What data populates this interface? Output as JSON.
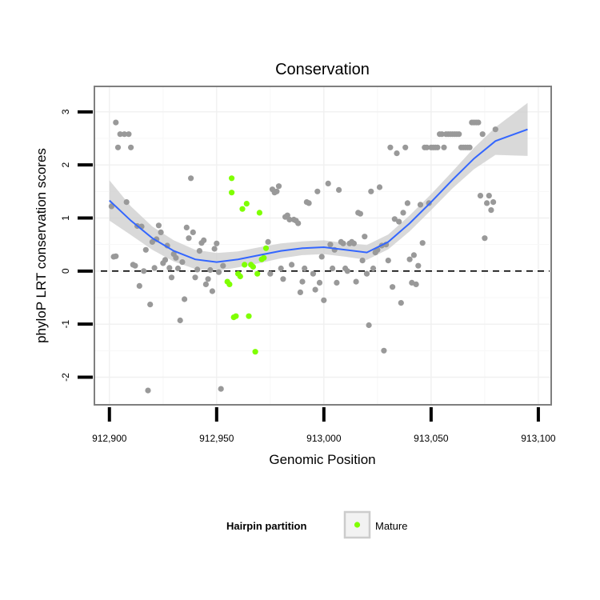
{
  "chart_data": {
    "type": "scatter",
    "title": "Conservation",
    "xlabel": "Genomic Position",
    "ylabel": "phyloP LRT conservation scores",
    "xlim": [
      912893,
      913106
    ],
    "ylim": [
      -2.52,
      3.48
    ],
    "x_ticks": [
      912900,
      912950,
      913000,
      913050,
      913100
    ],
    "x_tick_labels": [
      "912,900",
      "912,950",
      "913,000",
      "913,050",
      "913,100"
    ],
    "y_ticks": [
      -2,
      -1,
      0,
      1,
      2,
      3
    ],
    "y_tick_labels": [
      "-2",
      "-1",
      "0",
      "1",
      "2",
      "3"
    ],
    "grid": true,
    "reference_line": {
      "y": 0,
      "style": "dashed"
    },
    "legend": {
      "title": "Hairpin partition",
      "position": "bottom",
      "entries": [
        "Mature"
      ]
    },
    "colors": {
      "other": "#999999",
      "mature": "#7FFF00",
      "smooth": "#3366FF",
      "ribbon": "#cccccc",
      "panel_border": "#7f7f7f"
    },
    "series": [
      {
        "name": "",
        "color": "#999999",
        "points": [
          [
            912901,
            1.22
          ],
          [
            912902,
            0.27
          ],
          [
            912903,
            2.8
          ],
          [
            912903,
            0.28
          ],
          [
            912904,
            2.33
          ],
          [
            912905,
            2.58
          ],
          [
            912907,
            2.58
          ],
          [
            912908,
            1.3
          ],
          [
            912909,
            2.58
          ],
          [
            912910,
            2.33
          ],
          [
            912911,
            0.12
          ],
          [
            912912,
            0.1
          ],
          [
            912913,
            0.85
          ],
          [
            912914,
            -0.28
          ],
          [
            912915,
            0.84
          ],
          [
            912916,
            0.0
          ],
          [
            912917,
            0.4
          ],
          [
            912918,
            -2.25
          ],
          [
            912919,
            -0.63
          ],
          [
            912920,
            0.55
          ],
          [
            912921,
            0.06
          ],
          [
            912922,
            0.6
          ],
          [
            912923,
            0.86
          ],
          [
            912924,
            0.73
          ],
          [
            912925,
            0.15
          ],
          [
            912926,
            0.21
          ],
          [
            912927,
            0.48
          ],
          [
            912928,
            0.06
          ],
          [
            912929,
            -0.12
          ],
          [
            912930,
            0.32
          ],
          [
            912931,
            0.25
          ],
          [
            912932,
            0.05
          ],
          [
            912933,
            -0.93
          ],
          [
            912934,
            0.17
          ],
          [
            912935,
            -0.53
          ],
          [
            912936,
            0.82
          ],
          [
            912937,
            0.62
          ],
          [
            912938,
            1.75
          ],
          [
            912939,
            0.73
          ],
          [
            912940,
            -0.12
          ],
          [
            912941,
            0.03
          ],
          [
            912942,
            0.38
          ],
          [
            912943,
            0.53
          ],
          [
            912944,
            0.58
          ],
          [
            912945,
            -0.25
          ],
          [
            912946,
            -0.15
          ],
          [
            912947,
            0.02
          ],
          [
            912948,
            -0.38
          ],
          [
            912949,
            0.42
          ],
          [
            912950,
            0.52
          ],
          [
            912951,
            -0.02
          ],
          [
            912952,
            -2.22
          ],
          [
            912953,
            0.1
          ],
          [
            912974,
            0.55
          ],
          [
            912975,
            -0.05
          ],
          [
            912976,
            1.54
          ],
          [
            912977,
            1.48
          ],
          [
            912978,
            1.5
          ],
          [
            912979,
            1.6
          ],
          [
            912980,
            0.05
          ],
          [
            912981,
            -0.15
          ],
          [
            912982,
            1.02
          ],
          [
            912983,
            1.05
          ],
          [
            912984,
            0.97
          ],
          [
            912985,
            0.12
          ],
          [
            912986,
            0.97
          ],
          [
            912987,
            0.95
          ],
          [
            912988,
            0.9
          ],
          [
            912989,
            -0.4
          ],
          [
            912990,
            -0.2
          ],
          [
            912991,
            0.05
          ],
          [
            912992,
            1.3
          ],
          [
            912993,
            1.28
          ],
          [
            912995,
            -0.05
          ],
          [
            912996,
            -0.35
          ],
          [
            912997,
            1.5
          ],
          [
            912998,
            -0.22
          ],
          [
            912999,
            0.27
          ],
          [
            913000,
            -0.55
          ],
          [
            913002,
            1.65
          ],
          [
            913003,
            0.5
          ],
          [
            913004,
            0.05
          ],
          [
            913005,
            0.4
          ],
          [
            913006,
            -0.22
          ],
          [
            913007,
            1.53
          ],
          [
            913008,
            0.55
          ],
          [
            913009,
            0.52
          ],
          [
            913010,
            0.05
          ],
          [
            913011,
            0.0
          ],
          [
            913012,
            0.52
          ],
          [
            913013,
            0.55
          ],
          [
            913014,
            0.52
          ],
          [
            913015,
            -0.2
          ],
          [
            913016,
            1.1
          ],
          [
            913017,
            1.08
          ],
          [
            913018,
            0.2
          ],
          [
            913019,
            0.65
          ],
          [
            913020,
            -0.05
          ],
          [
            913021,
            -1.02
          ],
          [
            913022,
            1.5
          ],
          [
            913023,
            0.05
          ],
          [
            913024,
            0.35
          ],
          [
            913025,
            0.4
          ],
          [
            913026,
            1.58
          ],
          [
            913027,
            0.48
          ],
          [
            913028,
            -1.5
          ],
          [
            913029,
            0.5
          ],
          [
            913030,
            0.2
          ],
          [
            913031,
            2.33
          ],
          [
            913032,
            -0.3
          ],
          [
            913033,
            0.98
          ],
          [
            913034,
            2.22
          ],
          [
            913035,
            0.93
          ],
          [
            913036,
            -0.6
          ],
          [
            913037,
            1.1
          ],
          [
            913038,
            2.33
          ],
          [
            913039,
            1.28
          ],
          [
            913040,
            0.22
          ],
          [
            913041,
            -0.22
          ],
          [
            913042,
            0.3
          ],
          [
            913043,
            -0.25
          ],
          [
            913044,
            0.1
          ],
          [
            913045,
            1.25
          ],
          [
            913046,
            0.53
          ],
          [
            913047,
            2.33
          ],
          [
            913048,
            2.33
          ],
          [
            913049,
            1.28
          ],
          [
            913050,
            2.33
          ],
          [
            913051,
            2.33
          ],
          [
            913052,
            2.33
          ],
          [
            913053,
            2.33
          ],
          [
            913054,
            2.58
          ],
          [
            913055,
            2.58
          ],
          [
            913056,
            2.33
          ],
          [
            913057,
            2.58
          ],
          [
            913058,
            2.58
          ],
          [
            913059,
            2.58
          ],
          [
            913060,
            2.58
          ],
          [
            913061,
            2.58
          ],
          [
            913062,
            2.58
          ],
          [
            913063,
            2.58
          ],
          [
            913064,
            2.33
          ],
          [
            913065,
            2.33
          ],
          [
            913066,
            2.33
          ],
          [
            913067,
            2.33
          ],
          [
            913068,
            2.33
          ],
          [
            913069,
            2.8
          ],
          [
            913070,
            2.8
          ],
          [
            913071,
            2.8
          ],
          [
            913072,
            2.8
          ],
          [
            913073,
            1.42
          ],
          [
            913074,
            2.58
          ],
          [
            913075,
            0.62
          ],
          [
            913076,
            1.28
          ],
          [
            913077,
            1.42
          ],
          [
            913078,
            1.15
          ],
          [
            913079,
            1.3
          ],
          [
            913080,
            2.67
          ]
        ]
      },
      {
        "name": "Mature",
        "color": "#7FFF00",
        "points": [
          [
            912955,
            -0.2
          ],
          [
            912956,
            -0.25
          ],
          [
            912957,
            1.48
          ],
          [
            912957,
            1.75
          ],
          [
            912958,
            -0.87
          ],
          [
            912959,
            -0.85
          ],
          [
            912960,
            -0.05
          ],
          [
            912961,
            -0.1
          ],
          [
            912962,
            1.17
          ],
          [
            912963,
            0.12
          ],
          [
            912964,
            1.27
          ],
          [
            912965,
            -0.85
          ],
          [
            912966,
            0.12
          ],
          [
            912967,
            0.08
          ],
          [
            912968,
            -1.52
          ],
          [
            912969,
            -0.05
          ],
          [
            912970,
            1.1
          ],
          [
            912971,
            0.22
          ],
          [
            912972,
            0.25
          ],
          [
            912973,
            0.43
          ]
        ]
      }
    ],
    "smooth": {
      "points": [
        [
          912900,
          1.33
        ],
        [
          912910,
          0.95
        ],
        [
          912920,
          0.62
        ],
        [
          912930,
          0.38
        ],
        [
          912940,
          0.22
        ],
        [
          912950,
          0.17
        ],
        [
          912960,
          0.22
        ],
        [
          912970,
          0.3
        ],
        [
          912980,
          0.38
        ],
        [
          912990,
          0.43
        ],
        [
          913000,
          0.45
        ],
        [
          913010,
          0.4
        ],
        [
          913020,
          0.35
        ],
        [
          913030,
          0.55
        ],
        [
          913040,
          0.9
        ],
        [
          913050,
          1.3
        ],
        [
          913060,
          1.72
        ],
        [
          913070,
          2.12
        ],
        [
          913080,
          2.45
        ],
        [
          913095,
          2.67
        ]
      ],
      "band": [
        0.38,
        0.27,
        0.22,
        0.2,
        0.18,
        0.17,
        0.15,
        0.15,
        0.14,
        0.13,
        0.13,
        0.13,
        0.14,
        0.14,
        0.15,
        0.15,
        0.16,
        0.2,
        0.26,
        0.5
      ]
    }
  }
}
